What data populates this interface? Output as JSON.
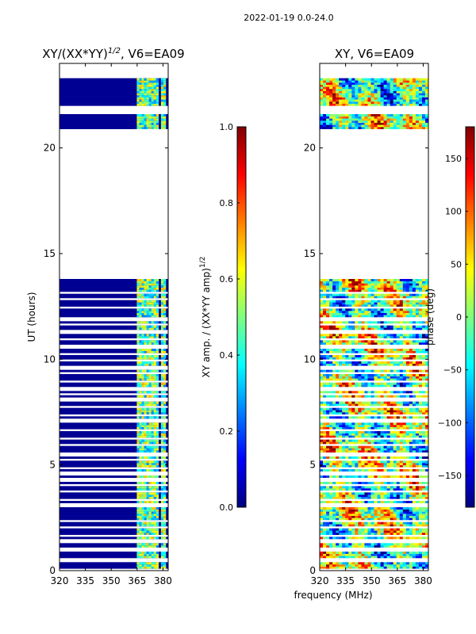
{
  "chart_data": [
    {
      "type": "heatmap",
      "title": "XY/(XX*YY)",
      "title_sup": "1/2",
      "title_suffix": ", V6=EA09",
      "ylabel": "UT (hours)",
      "xlabel": "",
      "xlim": [
        320,
        383
      ],
      "ylim": [
        0,
        24
      ],
      "x_ticks": [
        320,
        335,
        350,
        365,
        380
      ],
      "y_ticks": [
        0,
        5,
        10,
        15,
        20
      ],
      "colorbar": {
        "label": "XY amp. / (XX*YY amp)",
        "label_sup": "1/2",
        "range": [
          0.0,
          1.0
        ],
        "ticks": [
          "0.0",
          "0.2",
          "0.4",
          "0.6",
          "0.8",
          "1.0"
        ],
        "colormap": "jet"
      },
      "data_bands_ut": [
        [
          0.1,
          13.7
        ],
        [
          20.9,
          21.6
        ],
        [
          22.0,
          23.3
        ]
      ],
      "bright_channels_mhz": [
        [
          364,
          376
        ],
        [
          378,
          381
        ]
      ]
    },
    {
      "type": "heatmap",
      "title": "XY, V6=EA09",
      "ylabel": "",
      "xlabel": "frequency (MHz)",
      "xlim": [
        320,
        383
      ],
      "ylim": [
        0,
        24
      ],
      "x_ticks": [
        320,
        335,
        350,
        365,
        380
      ],
      "y_ticks": [
        0,
        5,
        10,
        15,
        20
      ],
      "colorbar": {
        "label": "phase (deg)",
        "range": [
          -180,
          180
        ],
        "ticks": [
          "150",
          "100",
          "50",
          "0",
          "−50",
          "−100",
          "−150"
        ],
        "colormap": "jet"
      },
      "data_bands_ut": [
        [
          0.1,
          13.7
        ],
        [
          20.9,
          21.6
        ],
        [
          22.0,
          23.3
        ]
      ]
    }
  ],
  "suptitle": "2022-01-19 0.0-24.0",
  "colors": {
    "jet": [
      "#00007f",
      "#0000ff",
      "#007fff",
      "#00ffff",
      "#7fff7f",
      "#ffff00",
      "#ff7f00",
      "#ff0000",
      "#7f0000"
    ]
  }
}
